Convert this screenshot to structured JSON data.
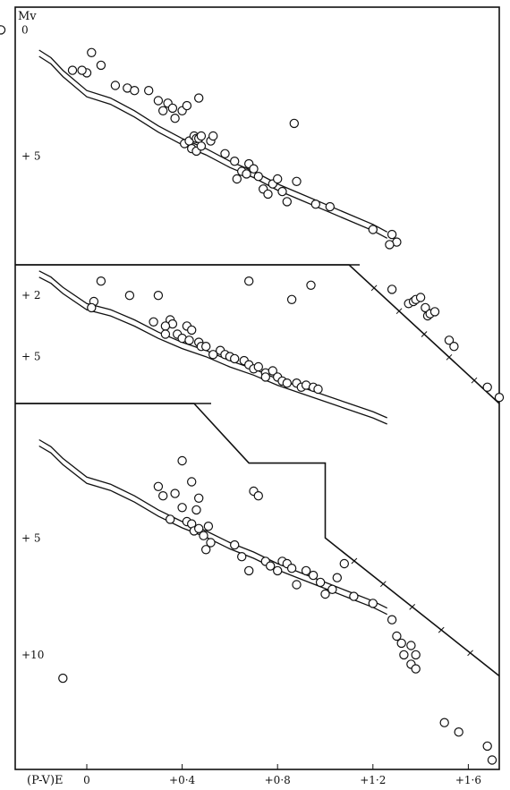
{
  "chart_data": {
    "type": "scatter",
    "ylabel": "Mv",
    "xlabel": "(P-V)E",
    "x_ticks": [
      "0",
      "+0·4",
      "+0·8",
      "+1·2",
      "+1·6"
    ],
    "xlim": [
      -0.3,
      1.73
    ],
    "panels": [
      {
        "ylim": [
          -0.9,
          9.3
        ],
        "y_ticks": [
          {
            "v": 0,
            "label": "0"
          },
          {
            "v": 5,
            "label": "+ 5"
          }
        ],
        "points": [
          [
            -0.36,
            0.0
          ],
          [
            0.02,
            0.9
          ],
          [
            0.0,
            1.7
          ],
          [
            -0.06,
            1.6
          ],
          [
            -0.02,
            1.6
          ],
          [
            0.06,
            1.4
          ],
          [
            0.12,
            2.2
          ],
          [
            0.17,
            2.3
          ],
          [
            0.2,
            2.4
          ],
          [
            0.26,
            2.4
          ],
          [
            0.3,
            2.8
          ],
          [
            0.34,
            2.9
          ],
          [
            0.36,
            3.1
          ],
          [
            0.4,
            3.2
          ],
          [
            0.47,
            2.7
          ],
          [
            0.42,
            3.0
          ],
          [
            0.32,
            3.2
          ],
          [
            0.37,
            3.5
          ],
          [
            0.41,
            4.5
          ],
          [
            0.43,
            4.4
          ],
          [
            0.45,
            4.2
          ],
          [
            0.46,
            4.3
          ],
          [
            0.47,
            4.3
          ],
          [
            0.48,
            4.2
          ],
          [
            0.44,
            4.7
          ],
          [
            0.46,
            4.8
          ],
          [
            0.48,
            4.6
          ],
          [
            0.52,
            4.4
          ],
          [
            0.53,
            4.2
          ],
          [
            0.58,
            4.9
          ],
          [
            0.62,
            5.2
          ],
          [
            0.65,
            5.6
          ],
          [
            0.63,
            5.9
          ],
          [
            0.67,
            5.7
          ],
          [
            0.68,
            5.3
          ],
          [
            0.7,
            5.5
          ],
          [
            0.72,
            5.8
          ],
          [
            0.74,
            6.3
          ],
          [
            0.76,
            6.5
          ],
          [
            0.78,
            6.1
          ],
          [
            0.8,
            5.9
          ],
          [
            0.82,
            6.4
          ],
          [
            0.84,
            6.8
          ],
          [
            0.88,
            6.0
          ],
          [
            0.96,
            6.9
          ],
          [
            1.02,
            7.0
          ],
          [
            1.2,
            7.9
          ],
          [
            1.28,
            8.1
          ],
          [
            1.3,
            8.4
          ],
          [
            1.27,
            8.5
          ],
          [
            0.87,
            3.7
          ]
        ]
      },
      {
        "ylim": [
          0.5,
          7.3
        ],
        "y_ticks": [
          {
            "v": 2,
            "label": "+ 2"
          },
          {
            "v": 5,
            "label": "+ 5"
          }
        ],
        "points": [
          [
            0.06,
            1.3
          ],
          [
            0.03,
            2.3
          ],
          [
            0.02,
            2.6
          ],
          [
            0.18,
            2.0
          ],
          [
            0.3,
            2.0
          ],
          [
            0.28,
            3.3
          ],
          [
            0.35,
            3.2
          ],
          [
            0.36,
            3.4
          ],
          [
            0.42,
            3.5
          ],
          [
            0.44,
            3.7
          ],
          [
            0.33,
            3.5
          ],
          [
            0.33,
            3.9
          ],
          [
            0.38,
            3.9
          ],
          [
            0.4,
            4.1
          ],
          [
            0.43,
            4.2
          ],
          [
            0.47,
            4.3
          ],
          [
            0.48,
            4.5
          ],
          [
            0.5,
            4.5
          ],
          [
            0.53,
            4.9
          ],
          [
            0.56,
            4.7
          ],
          [
            0.58,
            4.9
          ],
          [
            0.6,
            5.0
          ],
          [
            0.62,
            5.1
          ],
          [
            0.66,
            5.2
          ],
          [
            0.68,
            5.4
          ],
          [
            0.7,
            5.6
          ],
          [
            0.72,
            5.5
          ],
          [
            0.75,
            5.8
          ],
          [
            0.75,
            6.0
          ],
          [
            0.78,
            5.7
          ],
          [
            0.8,
            6.0
          ],
          [
            0.82,
            6.2
          ],
          [
            0.84,
            6.3
          ],
          [
            0.88,
            6.3
          ],
          [
            0.9,
            6.5
          ],
          [
            0.92,
            6.4
          ],
          [
            0.95,
            6.5
          ],
          [
            0.97,
            6.6
          ],
          [
            0.68,
            1.3
          ],
          [
            0.86,
            2.2
          ],
          [
            0.94,
            1.5
          ],
          [
            1.28,
            1.7
          ],
          [
            1.35,
            2.4
          ],
          [
            1.37,
            2.3
          ],
          [
            1.38,
            2.2
          ],
          [
            1.4,
            2.1
          ],
          [
            1.42,
            2.6
          ],
          [
            1.43,
            3.0
          ],
          [
            1.44,
            2.9
          ],
          [
            1.46,
            2.8
          ],
          [
            1.52,
            4.2
          ],
          [
            1.54,
            4.5
          ],
          [
            1.68,
            6.5
          ],
          [
            1.73,
            7.0
          ]
        ]
      },
      {
        "ylim": [
          -0.75,
          14.9
        ],
        "y_ticks": [
          {
            "v": 5,
            "label": "+ 5"
          },
          {
            "v": 10,
            "label": "+10"
          }
        ],
        "points": [
          [
            0.3,
            2.8
          ],
          [
            0.32,
            3.2
          ],
          [
            0.37,
            3.1
          ],
          [
            0.44,
            2.6
          ],
          [
            0.47,
            3.3
          ],
          [
            0.46,
            3.8
          ],
          [
            0.4,
            3.7
          ],
          [
            0.42,
            4.3
          ],
          [
            0.44,
            4.4
          ],
          [
            0.45,
            4.7
          ],
          [
            0.47,
            4.6
          ],
          [
            0.49,
            4.9
          ],
          [
            0.51,
            4.5
          ],
          [
            0.52,
            5.2
          ],
          [
            0.5,
            5.5
          ],
          [
            0.35,
            4.2
          ],
          [
            0.4,
            1.7
          ],
          [
            0.62,
            5.3
          ],
          [
            0.65,
            5.8
          ],
          [
            0.68,
            6.4
          ],
          [
            0.7,
            3.0
          ],
          [
            0.72,
            3.2
          ],
          [
            0.75,
            6.0
          ],
          [
            0.77,
            6.2
          ],
          [
            0.8,
            6.4
          ],
          [
            0.82,
            6.0
          ],
          [
            0.84,
            6.1
          ],
          [
            0.86,
            6.3
          ],
          [
            0.88,
            7.0
          ],
          [
            0.92,
            6.4
          ],
          [
            0.95,
            6.6
          ],
          [
            0.98,
            6.9
          ],
          [
            1.0,
            7.4
          ],
          [
            1.03,
            7.2
          ],
          [
            1.05,
            6.7
          ],
          [
            1.08,
            6.1
          ],
          [
            1.12,
            7.5
          ],
          [
            1.2,
            7.8
          ],
          [
            1.28,
            8.5
          ],
          [
            1.3,
            9.2
          ],
          [
            1.32,
            9.5
          ],
          [
            1.33,
            10.0
          ],
          [
            1.36,
            10.4
          ],
          [
            1.38,
            10.6
          ],
          [
            1.36,
            9.6
          ],
          [
            1.38,
            10.0
          ],
          [
            -0.1,
            11.0
          ],
          [
            1.5,
            12.9
          ],
          [
            1.56,
            13.3
          ],
          [
            1.68,
            13.9
          ],
          [
            1.7,
            14.5
          ]
        ]
      }
    ],
    "reference_curve": {
      "x": [
        -0.2,
        -0.15,
        -0.1,
        0.0,
        0.1,
        0.2,
        0.3,
        0.4,
        0.5,
        0.6,
        0.7,
        0.8,
        0.9,
        1.0,
        1.1,
        1.2,
        1.26
      ],
      "y": [
        0.8,
        1.1,
        1.6,
        2.4,
        2.7,
        3.2,
        3.8,
        4.3,
        4.7,
        5.2,
        5.6,
        6.1,
        6.5,
        6.9,
        7.3,
        7.7,
        8.0
      ]
    },
    "limit_lines": [
      [
        [
          -0.3,
          0.5
        ],
        [
          1.1,
          0.5
        ],
        [
          1.73,
          7.3
        ]
      ],
      [
        [
          -0.3,
          -0.75
        ],
        [
          0.45,
          -0.75
        ],
        [
          0.68,
          1.8
        ],
        [
          1.0,
          1.8
        ],
        [
          1.0,
          5.0
        ],
        [
          1.73,
          10.9
        ]
      ]
    ]
  }
}
